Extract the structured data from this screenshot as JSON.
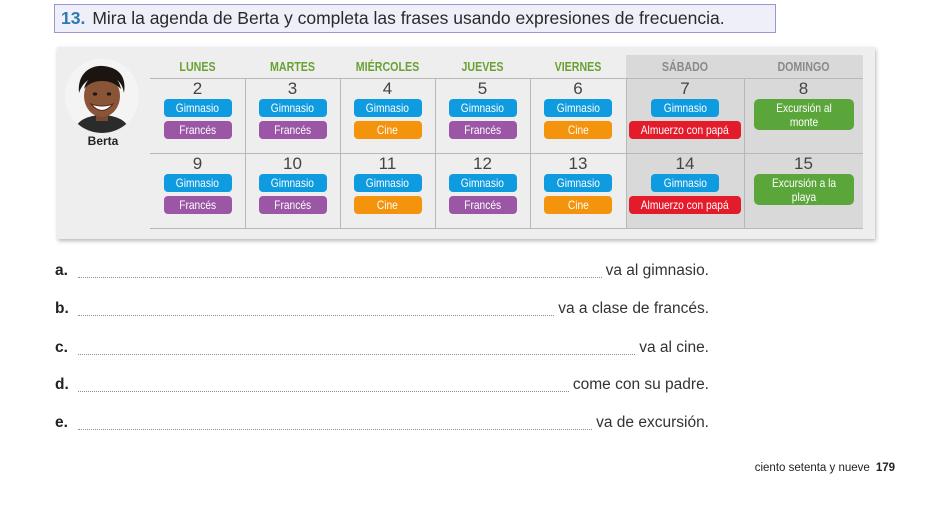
{
  "exercise": {
    "number": "13.",
    "instruction": "Mira la agenda de Berta y completa las frases usando expresiones de frecuencia."
  },
  "agenda": {
    "person": "Berta",
    "days": [
      "LUNES",
      "MARTES",
      "MIÉRCOLES",
      "JUEVES",
      "VIERNES",
      "SÁBADO",
      "DOMINGO"
    ],
    "weeks": [
      {
        "dates": [
          "2",
          "3",
          "4",
          "5",
          "6",
          "7",
          "8"
        ],
        "activities": [
          [
            "Gimnasio",
            "Francés"
          ],
          [
            "Gimnasio",
            "Francés"
          ],
          [
            "Gimnasio",
            "Cine"
          ],
          [
            "Gimnasio",
            "Francés"
          ],
          [
            "Gimnasio",
            "Cine"
          ],
          [
            "Gimnasio",
            "Almuerzo con papá"
          ],
          [
            "Excursión al monte"
          ]
        ]
      },
      {
        "dates": [
          "9",
          "10",
          "11",
          "12",
          "13",
          "14",
          "15"
        ],
        "activities": [
          [
            "Gimnasio",
            "Francés"
          ],
          [
            "Gimnasio",
            "Francés"
          ],
          [
            "Gimnasio",
            "Cine"
          ],
          [
            "Gimnasio",
            "Francés"
          ],
          [
            "Gimnasio",
            "Cine"
          ],
          [
            "Gimnasio",
            "Almuerzo con papá"
          ],
          [
            "Excursión a la playa"
          ]
        ]
      }
    ],
    "colors": {
      "Gimnasio": "#0f9be0",
      "Francés": "#9b56a6",
      "Cine": "#f4930c",
      "Almuerzo con papá": "#e41b2b",
      "Excursión": "#5aa63a"
    }
  },
  "sentences": [
    {
      "letter": "a.",
      "ending": "va al gimnasio."
    },
    {
      "letter": "b.",
      "ending": "va a clase de francés."
    },
    {
      "letter": "c.",
      "ending": "va al cine."
    },
    {
      "letter": "d.",
      "ending": "come con su padre."
    },
    {
      "letter": "e.",
      "ending": "va de excursión."
    }
  ],
  "footer": {
    "page_words": "ciento setenta y nueve",
    "page_number": "179"
  }
}
